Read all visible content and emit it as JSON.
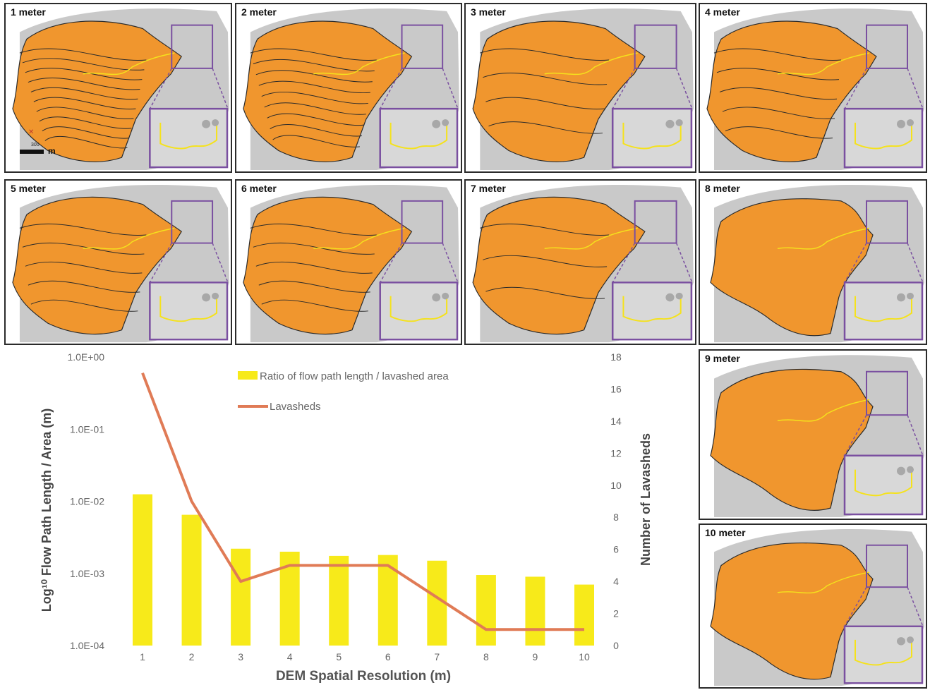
{
  "maps": {
    "panels": [
      {
        "label": "1 meter"
      },
      {
        "label": "2 meter"
      },
      {
        "label": "3 meter"
      },
      {
        "label": "4 meter"
      },
      {
        "label": "5 meter"
      },
      {
        "label": "6 meter"
      },
      {
        "label": "7 meter"
      },
      {
        "label": "8 meter"
      },
      {
        "label": "9 meter"
      },
      {
        "label": "10 meter"
      }
    ],
    "scale_value": "300",
    "scale_unit": "m",
    "colors": {
      "lavashed_fill": "#f0962e",
      "hillshade": "#c9c9c9",
      "flow_path": "#f5e21c",
      "boundary": "#2a2a2a",
      "inset_border": "#7a4fa0",
      "panel_border": "#2b2b2b"
    }
  },
  "chart_data": {
    "type": "bar",
    "categories": [
      "1",
      "2",
      "3",
      "4",
      "5",
      "6",
      "7",
      "8",
      "9",
      "10"
    ],
    "x": [
      1,
      2,
      3,
      4,
      5,
      6,
      7,
      8,
      9,
      10
    ],
    "xlabel": "DEM Spatial Resolution (m)",
    "ylabel_left": "Log¹⁰ Flow Path Length / Area (m)",
    "ylabel_right": "Number of Lavasheds",
    "left_axis": {
      "scale": "log",
      "ylim": [
        0.0001,
        1
      ],
      "ticks": [
        "1.0E+00",
        "1.0E-01",
        "1.0E-02",
        "1.0E-03",
        "1.0E-04"
      ]
    },
    "right_axis": {
      "scale": "linear",
      "ylim": [
        0,
        18
      ],
      "ticks": [
        0,
        2,
        4,
        6,
        8,
        10,
        12,
        14,
        16,
        18
      ]
    },
    "series": [
      {
        "name": "Ratio of flow path length / lavashed area",
        "type": "bar",
        "axis": "left",
        "color": "#f7ea1a",
        "values": [
          0.0125,
          0.0065,
          0.0022,
          0.002,
          0.00175,
          0.0018,
          0.0015,
          0.00095,
          0.0009,
          0.0007
        ]
      },
      {
        "name": "Lavasheds",
        "type": "line",
        "axis": "right",
        "color": "#e07b56",
        "values": [
          17,
          9,
          4,
          5,
          5,
          5,
          3,
          1,
          1,
          1
        ]
      }
    ],
    "legend": "top-center",
    "grid": false
  }
}
